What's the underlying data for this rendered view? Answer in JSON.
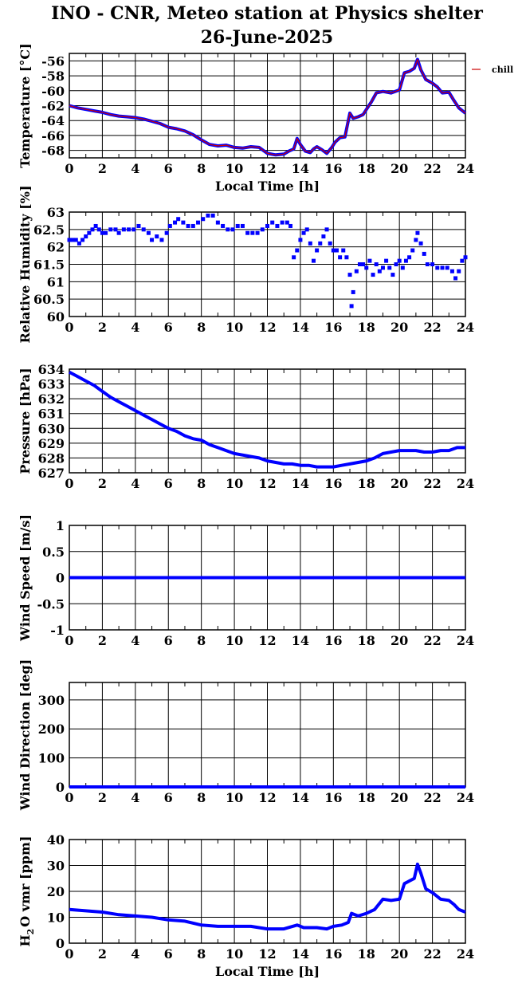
{
  "title_line1": "INO - CNR, Meteo station at Physics shelter",
  "title_line2": "26-June-2025",
  "colors": {
    "series": "#0000ff",
    "overlay": "#cc0000",
    "grid": "#000000"
  },
  "chart_data": [
    {
      "type": "line",
      "ylabel": "Temperature [°C]",
      "xlabel": "Local Time [h]",
      "xlim": [
        0,
        24
      ],
      "ylim": [
        -69,
        -55
      ],
      "yticks": [
        -68,
        -66,
        -64,
        -62,
        -60,
        -58,
        -56
      ],
      "xticks": [
        0,
        2,
        4,
        6,
        8,
        10,
        12,
        14,
        16,
        18,
        20,
        22,
        24
      ],
      "grid": true,
      "legend": {
        "placement": "right",
        "entries": [
          "chill"
        ]
      },
      "series": [
        {
          "x": [
            0,
            0.5,
            1,
            1.5,
            2,
            2.5,
            3,
            3.5,
            4,
            4.5,
            5,
            5.5,
            6,
            6.5,
            7,
            7.5,
            8,
            8.5,
            9,
            9.5,
            10,
            10.5,
            11,
            11.5,
            12,
            12.5,
            13,
            13.3,
            13.6,
            13.8,
            14,
            14.3,
            14.6,
            14.8,
            15,
            15.3,
            15.6,
            15.9,
            16.1,
            16.4,
            16.7,
            17,
            17.2,
            17.5,
            17.8,
            18,
            18.3,
            18.6,
            19,
            19.5,
            20,
            20.3,
            20.6,
            20.9,
            21.1,
            21.3,
            21.6,
            22,
            22.3,
            22.6,
            23,
            23.3,
            23.6,
            24
          ],
          "y": [
            -62,
            -62.3,
            -62.5,
            -62.7,
            -62.9,
            -63.2,
            -63.4,
            -63.5,
            -63.6,
            -63.8,
            -64.1,
            -64.4,
            -64.9,
            -65.1,
            -65.4,
            -65.9,
            -66.6,
            -67.2,
            -67.4,
            -67.3,
            -67.6,
            -67.7,
            -67.5,
            -67.6,
            -68.4,
            -68.6,
            -68.5,
            -68.1,
            -67.8,
            -66.4,
            -67.2,
            -68.1,
            -68.3,
            -67.8,
            -67.5,
            -67.9,
            -68.4,
            -67.6,
            -66.9,
            -66.3,
            -66.2,
            -63,
            -63.7,
            -63.5,
            -63.2,
            -62.5,
            -61.5,
            -60.3,
            -60.1,
            -60.3,
            -59.9,
            -57.6,
            -57.4,
            -57,
            -55.8,
            -57.2,
            -58.5,
            -59,
            -59.5,
            -60.3,
            -60.2,
            -61.3,
            -62.3,
            -63
          ]
        }
      ]
    },
    {
      "type": "scatter",
      "ylabel": "Relative Humidity [%]",
      "xlim": [
        0,
        24
      ],
      "ylim": [
        60,
        63
      ],
      "yticks": [
        60,
        60.5,
        61,
        61.5,
        62,
        62.5,
        63
      ],
      "xticks": [
        0,
        2,
        4,
        6,
        8,
        10,
        12,
        14,
        16,
        18,
        20,
        22,
        24
      ],
      "grid": true,
      "series": [
        {
          "x": [
            0,
            0.2,
            0.4,
            0.6,
            0.8,
            1,
            1.2,
            1.4,
            1.6,
            1.8,
            2,
            2.2,
            2.5,
            2.8,
            3,
            3.3,
            3.6,
            3.9,
            4.2,
            4.5,
            4.8,
            5,
            5.3,
            5.6,
            5.9,
            6.1,
            6.4,
            6.6,
            6.9,
            7.2,
            7.5,
            7.8,
            8.1,
            8.4,
            8.7,
            9,
            9.3,
            9.6,
            9.9,
            10.2,
            10.5,
            10.8,
            11.1,
            11.4,
            11.7,
            12,
            12.3,
            12.6,
            12.9,
            13.2,
            13.4,
            13.6,
            13.8,
            14,
            14.2,
            14.4,
            14.6,
            14.8,
            15,
            15.2,
            15.4,
            15.6,
            15.8,
            16,
            16.2,
            16.4,
            16.6,
            16.8,
            17,
            17.1,
            17.2,
            17.4,
            17.6,
            17.8,
            18,
            18.2,
            18.4,
            18.6,
            18.8,
            19,
            19.2,
            19.4,
            19.6,
            19.8,
            20,
            20.2,
            20.4,
            20.6,
            20.8,
            21,
            21.1,
            21.3,
            21.5,
            21.7,
            22,
            22.3,
            22.6,
            22.9,
            23.2,
            23.4,
            23.6,
            23.8,
            24
          ],
          "y": [
            62.2,
            62.2,
            62.2,
            62.1,
            62.2,
            62.3,
            62.4,
            62.5,
            62.6,
            62.5,
            62.4,
            62.4,
            62.5,
            62.5,
            62.4,
            62.5,
            62.5,
            62.5,
            62.6,
            62.5,
            62.4,
            62.2,
            62.3,
            62.2,
            62.4,
            62.6,
            62.7,
            62.8,
            62.7,
            62.6,
            62.6,
            62.7,
            62.8,
            62.9,
            62.9,
            62.7,
            62.6,
            62.5,
            62.5,
            62.6,
            62.6,
            62.4,
            62.4,
            62.4,
            62.5,
            62.6,
            62.7,
            62.6,
            62.7,
            62.7,
            62.6,
            61.7,
            61.9,
            62.2,
            62.4,
            62.5,
            62.1,
            61.6,
            61.9,
            62.1,
            62.3,
            62.5,
            62.1,
            61.9,
            61.9,
            61.7,
            61.9,
            61.7,
            61.2,
            60.3,
            60.7,
            61.3,
            61.5,
            61.5,
            61.4,
            61.6,
            61.2,
            61.5,
            61.3,
            61.4,
            61.6,
            61.4,
            61.2,
            61.5,
            61.6,
            61.4,
            61.6,
            61.7,
            61.9,
            62.2,
            62.4,
            62.1,
            61.8,
            61.5,
            61.5,
            61.4,
            61.4,
            61.4,
            61.3,
            61.1,
            61.3,
            61.6,
            61.7
          ]
        }
      ]
    },
    {
      "type": "line",
      "ylabel": "Pressure [hPa]",
      "xlim": [
        0,
        24
      ],
      "ylim": [
        627,
        634
      ],
      "yticks": [
        627,
        628,
        629,
        630,
        631,
        632,
        633,
        634
      ],
      "xticks": [
        0,
        2,
        4,
        6,
        8,
        10,
        12,
        14,
        16,
        18,
        20,
        22,
        24
      ],
      "grid": true,
      "series": [
        {
          "x": [
            0,
            0.5,
            1,
            1.5,
            2,
            2.5,
            3,
            3.5,
            4,
            4.5,
            5,
            5.5,
            6,
            6.5,
            7,
            7.5,
            8,
            8.5,
            9,
            9.5,
            10,
            10.5,
            11,
            11.5,
            12,
            12.5,
            13,
            13.5,
            14,
            14.5,
            15,
            15.5,
            16,
            16.5,
            17,
            17.5,
            18,
            18.5,
            19,
            19.5,
            20,
            20.5,
            21,
            21.5,
            22,
            22.5,
            23,
            23.5,
            24
          ],
          "y": [
            633.8,
            633.5,
            633.2,
            632.9,
            632.5,
            632.1,
            631.8,
            631.5,
            631.2,
            630.9,
            630.6,
            630.3,
            630,
            629.8,
            629.5,
            629.3,
            629.2,
            628.9,
            628.7,
            628.5,
            628.3,
            628.2,
            628.1,
            628,
            627.8,
            627.7,
            627.6,
            627.6,
            627.5,
            627.5,
            627.4,
            627.4,
            627.4,
            627.5,
            627.6,
            627.7,
            627.8,
            628,
            628.3,
            628.4,
            628.5,
            628.5,
            628.5,
            628.4,
            628.4,
            628.5,
            628.5,
            628.7,
            628.7
          ]
        }
      ]
    },
    {
      "type": "line",
      "ylabel": "Wind Speed [m/s]",
      "xlim": [
        0,
        24
      ],
      "ylim": [
        -1,
        1
      ],
      "yticks": [
        -1,
        -0.5,
        0,
        0.5,
        1
      ],
      "xticks": [
        0,
        2,
        4,
        6,
        8,
        10,
        12,
        14,
        16,
        18,
        20,
        22,
        24
      ],
      "grid": true,
      "series": [
        {
          "x": [
            0,
            24
          ],
          "y": [
            0,
            0
          ]
        }
      ]
    },
    {
      "type": "line",
      "ylabel": "Wind Direction [deg]",
      "xlim": [
        0,
        24
      ],
      "ylim": [
        0,
        360
      ],
      "yticks": [
        0,
        100,
        200,
        300
      ],
      "xticks": [
        0,
        2,
        4,
        6,
        8,
        10,
        12,
        14,
        16,
        18,
        20,
        22,
        24
      ],
      "grid": true,
      "series": [
        {
          "x": [
            0,
            24
          ],
          "y": [
            0,
            0
          ]
        }
      ]
    },
    {
      "type": "line",
      "ylabel": "H2O vmr [ppm]",
      "xlabel": "Local Time [h]",
      "xlim": [
        0,
        24
      ],
      "ylim": [
        0,
        40
      ],
      "yticks": [
        0,
        10,
        20,
        30,
        40
      ],
      "xticks": [
        0,
        2,
        4,
        6,
        8,
        10,
        12,
        14,
        16,
        18,
        20,
        22,
        24
      ],
      "grid": true,
      "series": [
        {
          "x": [
            0,
            1,
            2,
            3,
            4,
            5,
            6,
            7,
            8,
            9,
            10,
            11,
            12,
            13,
            13.8,
            14.2,
            15,
            15.6,
            16,
            16.5,
            16.9,
            17.1,
            17.5,
            18,
            18.5,
            19,
            19.5,
            20,
            20.3,
            20.6,
            20.9,
            21.1,
            21.3,
            21.6,
            22,
            22.5,
            23,
            23.3,
            23.6,
            24
          ],
          "y": [
            13,
            12.5,
            12,
            11,
            10.5,
            10,
            9,
            8.5,
            7,
            6.5,
            6.5,
            6.5,
            5.5,
            5.5,
            7,
            6,
            6,
            5.5,
            6.5,
            7,
            8,
            11.5,
            10.5,
            11.5,
            13,
            17,
            16.5,
            17,
            23,
            24,
            25,
            30.5,
            27,
            21,
            19.5,
            17,
            16.5,
            15,
            13,
            12
          ]
        }
      ]
    }
  ]
}
